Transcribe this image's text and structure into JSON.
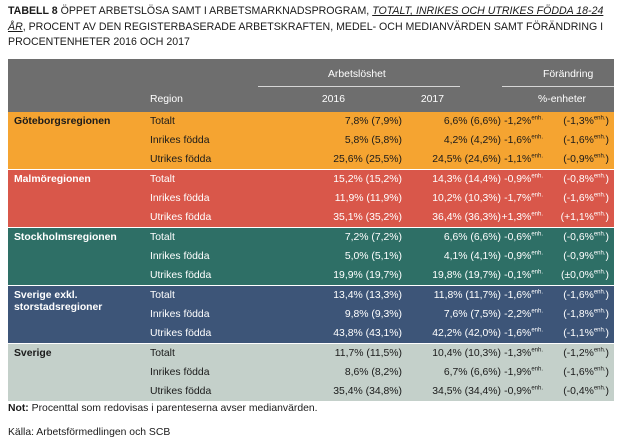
{
  "caption": {
    "label": "TABELL 8",
    "text_a": " ÖPPET ARBETSLÖSA SAMT I ARBETSMARKNADSPROGRAM, ",
    "emph": "TOTALT, INRIKES OCH UTRIKES FÖDDA 18-24 ÅR",
    "text_b": ", PROCENT AV DEN REGISTERBASERADE ARBETSKRAFTEN, MEDEL- OCH MEDIANVÄRDEN SAMT FÖRÄNDRING I PROCENTENHETER 2016 OCH 2017"
  },
  "header": {
    "group1": "Arbetslöshet",
    "group2": "Förändring",
    "col_region": "Region",
    "col_2016": "2016",
    "col_2017": "2017",
    "col_unit": "%-enheter"
  },
  "unit_sup": "enh.",
  "regions": [
    {
      "name": "Göteborgsregionen",
      "bg": "#f5a431",
      "fg": "#1a1a1a",
      "rows": [
        {
          "type": "Totalt",
          "v2016": "7,8% (7,9%)",
          "v2017": "6,6% (6,6%)",
          "chg": "-1,2%",
          "med": "(-1,3%"
        },
        {
          "type": "Inrikes födda",
          "v2016": "5,8% (5,8%)",
          "v2017": "4,2% (4,2%)",
          "chg": "-1,6%",
          "med": "(-1,6%"
        },
        {
          "type": "Utrikes födda",
          "v2016": "25,6% (25,5%)",
          "v2017": "24,5% (24,6%)",
          "chg": "-1,1%",
          "med": "(-0,9%"
        }
      ]
    },
    {
      "name": "Malmöregionen",
      "bg": "#d9574a",
      "fg": "#ffffff",
      "rows": [
        {
          "type": "Totalt",
          "v2016": "15,2% (15,2%)",
          "v2017": "14,3% (14,4%)",
          "chg": "-0,9%",
          "med": "(-0,8%"
        },
        {
          "type": "Inrikes födda",
          "v2016": "11,9% (11,9%)",
          "v2017": "10,2% (10,3%)",
          "chg": "-1,7%",
          "med": "(-1,6%"
        },
        {
          "type": "Utrikes födda",
          "v2016": "35,1% (35,2%)",
          "v2017": "36,4% (36,3%)",
          "chg": "+1,3%",
          "med": "(+1,1%"
        }
      ]
    },
    {
      "name": "Stockholmsregionen",
      "bg": "#2e6f66",
      "fg": "#ffffff",
      "rows": [
        {
          "type": "Totalt",
          "v2016": "7,2% (7,2%)",
          "v2017": "6,6% (6,6%)",
          "chg": "-0,6%",
          "med": "(-0,6%"
        },
        {
          "type": "Inrikes födda",
          "v2016": "5,0% (5,1%)",
          "v2017": "4,1% (4,1%)",
          "chg": "-0,9%",
          "med": "(-0,9%"
        },
        {
          "type": "Utrikes födda",
          "v2016": "19,9% (19,7%)",
          "v2017": "19,8% (19,7%)",
          "chg": "-0,1%",
          "med": "(±0,0%"
        }
      ]
    },
    {
      "name": "Sverige exkl. storstadsregioner",
      "bg": "#3d5578",
      "fg": "#ffffff",
      "rows": [
        {
          "type": "Totalt",
          "v2016": "13,4% (13,3%)",
          "v2017": "11,8% (11,7%)",
          "chg": "-1,6%",
          "med": "(-1,6%"
        },
        {
          "type": "Inrikes födda",
          "v2016": "9,8% (9,3%)",
          "v2017": "7,6% (7,5%)",
          "chg": "-2,2%",
          "med": "(-1,8%"
        },
        {
          "type": "Utrikes födda",
          "v2016": "43,8% (43,1%)",
          "v2017": "42,2% (42,0%)",
          "chg": "-1,6%",
          "med": "(-1,1%"
        }
      ]
    },
    {
      "name": "Sverige",
      "bg": "#c4d0ca",
      "fg": "#1a1a1a",
      "rows": [
        {
          "type": "Totalt",
          "v2016": "11,7% (11,5%)",
          "v2017": "10,4% (10,3%)",
          "chg": "-1,3%",
          "med": "(-1,2%"
        },
        {
          "type": "Inrikes födda",
          "v2016": "8,6% (8,2%)",
          "v2017": "6,7% (6,6%)",
          "chg": "-1,9%",
          "med": "(-1,6%"
        },
        {
          "type": "Utrikes födda",
          "v2016": "35,4% (34,8%)",
          "v2017": "34,5% (34,4%)",
          "chg": "-0,9%",
          "med": "(-0,4%"
        }
      ]
    }
  ],
  "footer": {
    "note_label": "Not:",
    "note_text": " Procenttal som redovisas i parenteserna avser medianvärden.",
    "source": "Källa: Arbetsförmedlingen och SCB"
  }
}
